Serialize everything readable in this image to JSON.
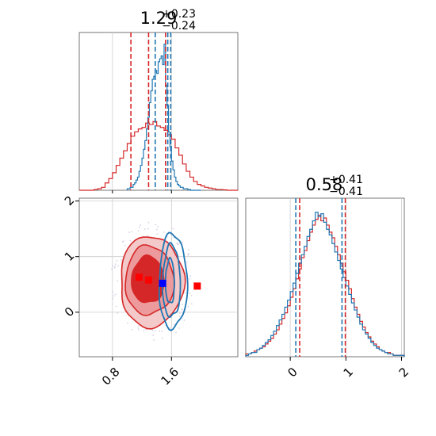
{
  "colors": {
    "red": "#d62728",
    "blue": "#1f77b4",
    "red_fill_light": "#ec9a9b",
    "grid": "#cccccc",
    "axis": "#555555"
  },
  "chart_data": [
    {
      "panel": "top-left",
      "type": "histogram",
      "parameter_index": 0,
      "title": {
        "median": "1.29",
        "plus": "+0.23",
        "minus": "−0.24"
      },
      "xlim": [
        0.35,
        2.5
      ],
      "ylim": [
        0,
        1.08
      ],
      "grid": true,
      "series": [
        {
          "color": "red",
          "bins": [
            0.35,
            0.4,
            0.45,
            0.5,
            0.55,
            0.6,
            0.65,
            0.7,
            0.75,
            0.8,
            0.85,
            0.9,
            0.95,
            1.0,
            1.05,
            1.1,
            1.15,
            1.2,
            1.25,
            1.3,
            1.35,
            1.4,
            1.45,
            1.5,
            1.55,
            1.6,
            1.65,
            1.7,
            1.75,
            1.8,
            1.85,
            1.9,
            1.95,
            2.0,
            2.05,
            2.1,
            2.15,
            2.2,
            2.25,
            2.3,
            2.35,
            2.4,
            2.45,
            2.5
          ],
          "counts": [
            0,
            0,
            0,
            0,
            0.005,
            0.01,
            0.02,
            0.05,
            0.08,
            0.12,
            0.17,
            0.22,
            0.27,
            0.32,
            0.37,
            0.4,
            0.42,
            0.43,
            0.46,
            0.45,
            0.47,
            0.44,
            0.43,
            0.41,
            0.38,
            0.35,
            0.29,
            0.24,
            0.18,
            0.13,
            0.09,
            0.06,
            0.04,
            0.03,
            0.02,
            0.015,
            0.01,
            0.005,
            0.005,
            0.003,
            0,
            0,
            0
          ],
          "quantile_lines": [
            1.05,
            1.52
          ]
        },
        {
          "color": "blue",
          "bins": [
            1.0,
            1.02,
            1.04,
            1.06,
            1.08,
            1.1,
            1.12,
            1.14,
            1.16,
            1.18,
            1.2,
            1.22,
            1.24,
            1.26,
            1.28,
            1.3,
            1.32,
            1.34,
            1.36,
            1.38,
            1.4,
            1.42,
            1.44,
            1.46,
            1.48,
            1.5,
            1.52,
            1.54,
            1.56,
            1.58,
            1.6,
            1.62,
            1.64,
            1.66,
            1.68,
            1.7,
            1.72,
            1.74,
            1.76,
            1.78,
            1.8,
            1.82,
            1.84,
            1.86,
            1.88,
            1.9,
            1.92,
            1.94,
            1.96,
            1.98,
            2.0
          ],
          "counts": [
            0.01,
            0.01,
            0.02,
            0.02,
            0.04,
            0.05,
            0.07,
            0.09,
            0.13,
            0.17,
            0.22,
            0.28,
            0.34,
            0.42,
            0.5,
            0.6,
            0.68,
            0.76,
            0.78,
            0.82,
            0.8,
            0.88,
            0.9,
            0.92,
            0.86,
            1.0,
            0.72,
            0.58,
            0.4,
            0.3,
            0.2,
            0.14,
            0.09,
            0.06,
            0.04,
            0.03,
            0.02,
            0.02,
            0.01,
            0.01,
            0.01,
            0.005,
            0.005,
            0,
            0,
            0,
            0,
            0,
            0,
            0
          ],
          "quantile_lines": [
            1.38,
            1.59
          ]
        }
      ],
      "shared_lines": [
        {
          "color": "red",
          "x": 1.29
        },
        {
          "color": "blue",
          "x": 1.55
        }
      ]
    },
    {
      "panel": "bottom-left",
      "type": "contour",
      "xlim": [
        0.35,
        2.5
      ],
      "ylim": [
        -0.8,
        2.05
      ],
      "yticks": [
        "0",
        "1",
        "2"
      ],
      "xticks": [
        "0.8",
        "1.6"
      ],
      "ytick_values": [
        0,
        1,
        2
      ],
      "xtick_values": [
        0.8,
        1.6
      ],
      "grid": true,
      "red_contours": [
        {
          "level": "outer",
          "cx": 1.33,
          "cy": 0.55,
          "rx": 0.43,
          "ry": 0.82
        },
        {
          "level": "mid",
          "cx": 1.3,
          "cy": 0.57,
          "rx": 0.33,
          "ry": 0.62
        },
        {
          "level": "inner",
          "cx": 1.28,
          "cy": 0.58,
          "rx": 0.22,
          "ry": 0.42
        }
      ],
      "blue_contours": [
        {
          "level": "outer",
          "cx": 1.62,
          "cy": 0.55,
          "rx": 0.19,
          "ry": 0.85
        },
        {
          "level": "mid",
          "cx": 1.6,
          "cy": 0.55,
          "rx": 0.12,
          "ry": 0.65
        },
        {
          "level": "inner",
          "cx": 1.58,
          "cy": 0.55,
          "rx": 0.06,
          "ry": 0.4
        }
      ],
      "markers": [
        {
          "color": "red",
          "x": 1.16,
          "y": 0.63
        },
        {
          "color": "red",
          "x": 1.29,
          "y": 0.58
        },
        {
          "color": "blue",
          "x": 1.48,
          "y": 0.52
        },
        {
          "color": "red",
          "x": 1.95,
          "y": 0.47
        }
      ]
    },
    {
      "panel": "bottom-right",
      "type": "histogram",
      "parameter_index": 1,
      "title": {
        "median": "0.58",
        "plus": "+0.41",
        "minus": "−0.41"
      },
      "xlim": [
        -0.8,
        2.05
      ],
      "ylim": [
        0,
        1.12
      ],
      "xticks": [
        "0",
        "1",
        "2"
      ],
      "xtick_values": [
        0,
        1,
        2
      ],
      "grid": true,
      "series": [
        {
          "color": "red",
          "bins": [
            -0.8,
            -0.75,
            -0.7,
            -0.65,
            -0.6,
            -0.55,
            -0.5,
            -0.45,
            -0.4,
            -0.35,
            -0.3,
            -0.25,
            -0.2,
            -0.15,
            -0.1,
            -0.05,
            0.0,
            0.05,
            0.1,
            0.15,
            0.2,
            0.25,
            0.3,
            0.35,
            0.4,
            0.45,
            0.5,
            0.55,
            0.6,
            0.65,
            0.7,
            0.75,
            0.8,
            0.85,
            0.9,
            0.95,
            1.0,
            1.05,
            1.1,
            1.15,
            1.2,
            1.25,
            1.3,
            1.35,
            1.4,
            1.45,
            1.5,
            1.55,
            1.6,
            1.65,
            1.7,
            1.75,
            1.8,
            1.85,
            1.9,
            1.95,
            2.0,
            2.05
          ],
          "counts": [
            0.02,
            0.02,
            0.03,
            0.04,
            0.05,
            0.06,
            0.07,
            0.09,
            0.11,
            0.13,
            0.16,
            0.19,
            0.23,
            0.27,
            0.31,
            0.36,
            0.42,
            0.48,
            0.55,
            0.62,
            0.7,
            0.75,
            0.82,
            0.88,
            0.93,
            0.97,
            1.0,
            0.96,
            0.98,
            0.93,
            0.88,
            0.84,
            0.78,
            0.72,
            0.66,
            0.6,
            0.54,
            0.48,
            0.41,
            0.35,
            0.3,
            0.25,
            0.21,
            0.17,
            0.14,
            0.11,
            0.09,
            0.07,
            0.05,
            0.04,
            0.03,
            0.03,
            0.02,
            0.01,
            0.01,
            0.01,
            0.01
          ],
          "quantile_lines": [
            0.17,
            0.99
          ]
        },
        {
          "color": "blue",
          "bins": [
            -0.8,
            -0.75,
            -0.7,
            -0.65,
            -0.6,
            -0.55,
            -0.5,
            -0.45,
            -0.4,
            -0.35,
            -0.3,
            -0.25,
            -0.2,
            -0.15,
            -0.1,
            -0.05,
            0.0,
            0.05,
            0.1,
            0.15,
            0.2,
            0.25,
            0.3,
            0.35,
            0.4,
            0.45,
            0.5,
            0.55,
            0.6,
            0.65,
            0.7,
            0.75,
            0.8,
            0.85,
            0.9,
            0.95,
            1.0,
            1.05,
            1.1,
            1.15,
            1.2,
            1.25,
            1.3,
            1.35,
            1.4,
            1.45,
            1.5,
            1.55,
            1.6,
            1.65,
            1.7,
            1.75,
            1.8,
            1.85,
            1.9,
            1.95,
            2.0,
            2.05
          ],
          "counts": [
            0.01,
            0.02,
            0.03,
            0.03,
            0.05,
            0.06,
            0.08,
            0.1,
            0.12,
            0.15,
            0.18,
            0.22,
            0.26,
            0.3,
            0.35,
            0.4,
            0.46,
            0.52,
            0.59,
            0.66,
            0.72,
            0.78,
            0.85,
            0.9,
            0.96,
            1.02,
            0.99,
            1.01,
            0.95,
            0.9,
            0.86,
            0.8,
            0.74,
            0.68,
            0.62,
            0.56,
            0.5,
            0.44,
            0.38,
            0.33,
            0.28,
            0.23,
            0.19,
            0.16,
            0.13,
            0.1,
            0.08,
            0.06,
            0.05,
            0.04,
            0.03,
            0.02,
            0.02,
            0.01,
            0.01,
            0.01,
            0.01
          ],
          "quantile_lines": [
            0.1,
            0.93
          ]
        }
      ],
      "shared_lines": []
    }
  ]
}
